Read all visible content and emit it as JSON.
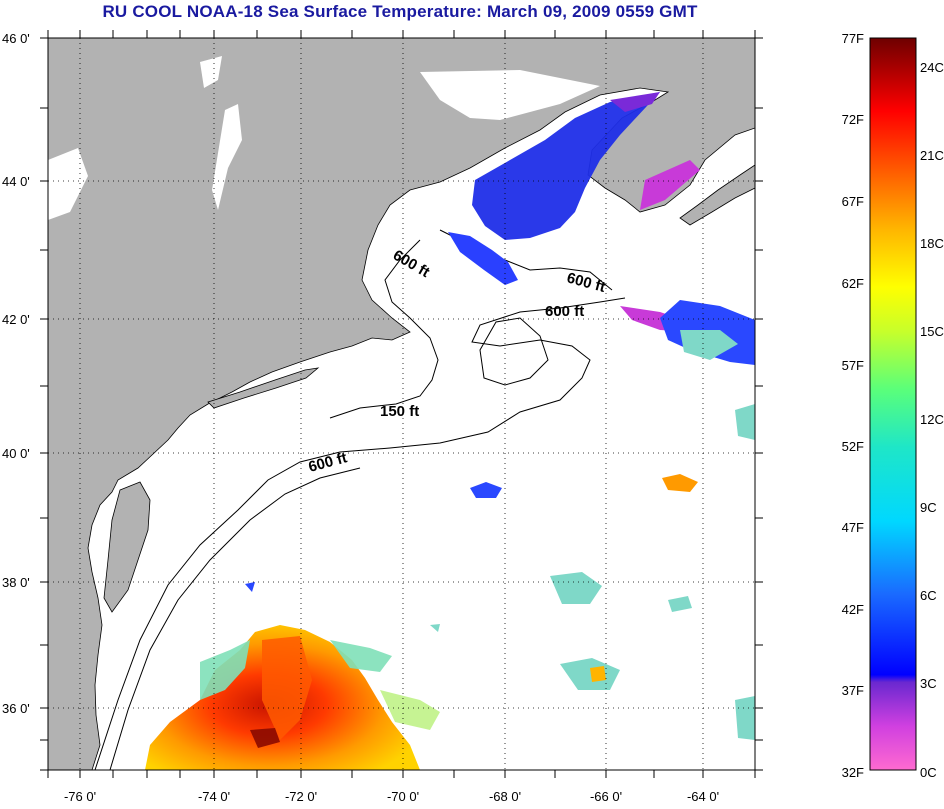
{
  "title": "RU COOL  NOAA-18  Sea Surface Temperature:  March 09, 2009 0559 GMT",
  "map": {
    "x_ticks": [
      "-76 0'",
      "-74 0'",
      "-72 0'",
      "-70 0'",
      "-68 0'",
      "-66 0'",
      "-64 0'"
    ],
    "y_ticks": [
      "46 0'",
      "44 0'",
      "42 0'",
      "40 0'",
      "38 0'",
      "36 0'"
    ],
    "contour_labels": [
      "600 ft",
      "600 ft",
      "600 ft",
      "150 ft",
      "600 ft"
    ],
    "land_color": "#b2b2b2",
    "water_color": "#ffffff",
    "grid": "dotted"
  },
  "colorbar": {
    "fahrenheit_labels": [
      "77F",
      "72F",
      "67F",
      "62F",
      "57F",
      "52F",
      "47F",
      "42F",
      "37F",
      "32F"
    ],
    "celsius_labels": [
      "24C",
      "21C",
      "18C",
      "15C",
      "12C",
      "9C",
      "6C",
      "3C",
      "0C"
    ],
    "range_f": [
      32,
      77
    ],
    "range_c": [
      0,
      25
    ]
  }
}
